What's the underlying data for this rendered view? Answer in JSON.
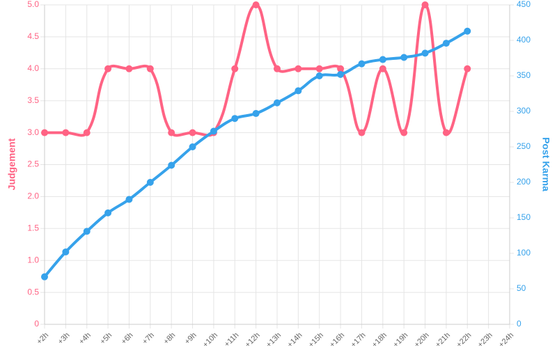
{
  "chart_data": {
    "type": "line",
    "categories": [
      "+2h",
      "+3h",
      "+4h",
      "+5h",
      "+6h",
      "+7h",
      "+8h",
      "+9h",
      "+10h",
      "+11h",
      "+12h",
      "+13h",
      "+14h",
      "+15h",
      "+16h",
      "+17h",
      "+18h",
      "+19h",
      "+20h",
      "+21h",
      "+22h",
      "+23h",
      "+24h"
    ],
    "series": [
      {
        "name": "Judgement",
        "color": "#ff6384",
        "axis": "y",
        "values": [
          3,
          3,
          3,
          4,
          4,
          4,
          3,
          3,
          3,
          4,
          5,
          4,
          4,
          4,
          4,
          3,
          4,
          3,
          5,
          3,
          4,
          null,
          null
        ]
      },
      {
        "name": "Post Karma",
        "color": "#36a2eb",
        "axis": "y2",
        "values": [
          67,
          102,
          131,
          157,
          176,
          200,
          224,
          250,
          272,
          290,
          297,
          312,
          329,
          350,
          352,
          367,
          373,
          376,
          382,
          396,
          413,
          null,
          null
        ]
      }
    ],
    "ylabel": "Judgement",
    "y2label": "Post Karma",
    "ylim": [
      0,
      5
    ],
    "yticks": [
      0,
      0.5,
      {
        "value": 1,
        "label": "1.0"
      },
      1.5,
      {
        "value": 2,
        "label": "2.0"
      },
      2.5,
      {
        "value": 3,
        "label": "3.0"
      },
      3.5,
      {
        "value": 4,
        "label": "4.0"
      },
      4.5,
      {
        "value": 5,
        "label": "5.0"
      }
    ],
    "y2lim": [
      0,
      450
    ],
    "y2ticks": [
      0,
      50,
      100,
      150,
      200,
      250,
      300,
      350,
      400,
      450
    ],
    "grid": true
  }
}
